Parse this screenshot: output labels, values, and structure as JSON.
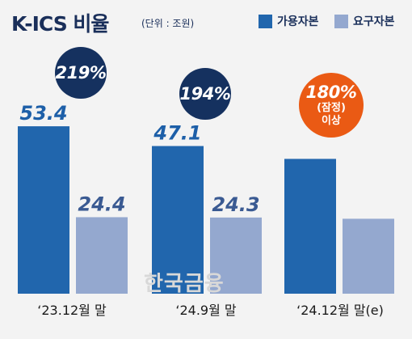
{
  "chart_data": {
    "type": "bar",
    "title": "K-ICS 비율",
    "unit_note": "(단위 : 조원)",
    "categories": [
      "‘23.12월 말",
      "‘24.9월 말",
      "‘24.12월 말(e)"
    ],
    "series": [
      {
        "name": "가용자본",
        "values": [
          53.4,
          47.1,
          43.0
        ],
        "labels": [
          "53.4",
          "47.1",
          ""
        ]
      },
      {
        "name": "요구자본",
        "values": [
          24.4,
          24.3,
          23.9
        ],
        "labels": [
          "24.4",
          "24.3",
          ""
        ]
      }
    ],
    "ratios": [
      {
        "value": "219%",
        "sub": ""
      },
      {
        "value": "194%",
        "sub": ""
      },
      {
        "value": "180%",
        "sub": "(잠정)\n이상"
      }
    ],
    "ylim": [
      0,
      80
    ],
    "grid": false,
    "legend": "top-right"
  },
  "colors": {
    "available": "#2166ad",
    "required": "#94a8cf",
    "bubble_navy": "#15315f",
    "bubble_orange": "#ea5a14",
    "label_available": "#1d5fa8",
    "label_required": "#3a5a92"
  },
  "watermark": "한국금융"
}
